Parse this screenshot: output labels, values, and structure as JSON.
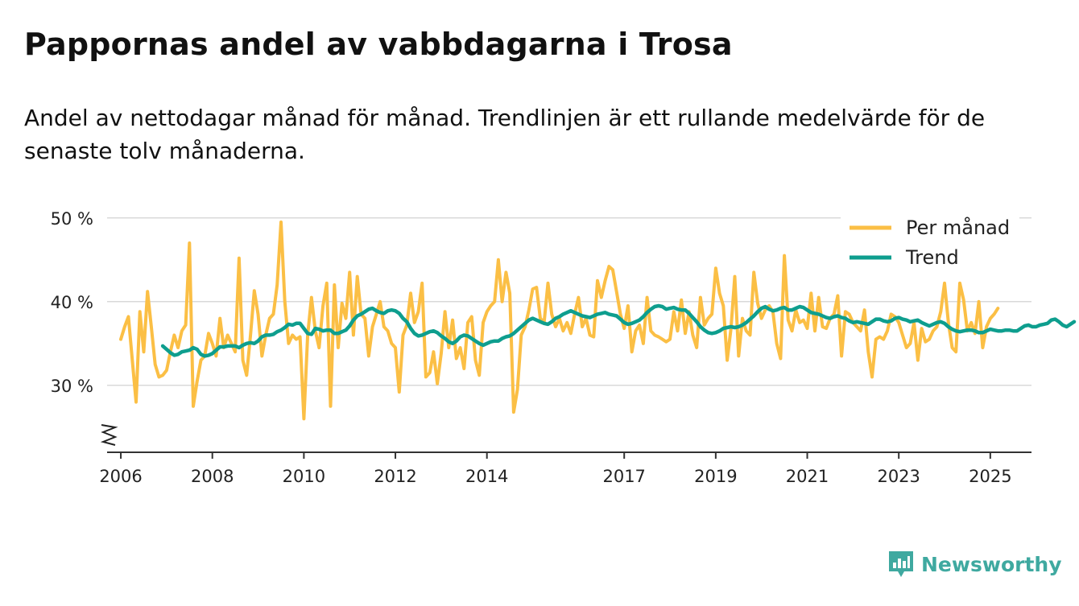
{
  "header": {
    "title": "Pappornas andel av vabbdagarna i Trosa",
    "subtitle": "Andel av nettodagar månad för månad. Trendlinjen är ett rullande medelvärde för de senaste tolv månaderna."
  },
  "brand": {
    "name": "Newsworthy"
  },
  "chart_data": {
    "type": "line",
    "title": "Pappornas andel av vabbdagarna i Trosa",
    "xlabel": "",
    "ylabel": "",
    "ylim": [
      22,
      52
    ],
    "y_ticks": [
      30,
      40,
      50
    ],
    "y_tick_labels": [
      "30 %",
      "40 %",
      "50 %"
    ],
    "x_ticks": [
      2006,
      2008,
      2010,
      2012,
      2014,
      2017,
      2019,
      2021,
      2023,
      2025
    ],
    "x_range": [
      2005.7,
      2025.9
    ],
    "axis_break": true,
    "legend_position": "top-right",
    "colors": {
      "monthly": "#fbbf45",
      "trend": "#0e9e8e",
      "grid": "#d9d9d9",
      "axis": "#333333"
    },
    "series": [
      {
        "name": "Per månad",
        "start": 2006.0,
        "step_months": 1,
        "values": [
          35.5,
          37.0,
          38.2,
          33.0,
          28.0,
          38.8,
          34.0,
          41.2,
          37.0,
          32.5,
          31.0,
          31.2,
          31.8,
          34.0,
          36.0,
          34.5,
          36.5,
          37.2,
          47.0,
          27.5,
          30.5,
          33.0,
          33.5,
          36.2,
          35.0,
          33.5,
          38.0,
          34.5,
          36.0,
          35.0,
          34.0,
          45.2,
          33.0,
          31.2,
          36.0,
          41.3,
          38.5,
          33.5,
          36.0,
          38.0,
          38.5,
          42.0,
          49.5,
          40.0,
          35.0,
          36.0,
          35.5,
          35.8,
          26.0,
          36.0,
          40.5,
          36.5,
          34.5,
          39.5,
          42.2,
          27.5,
          42.0,
          34.5,
          39.8,
          38.0,
          43.5,
          36.0,
          43.0,
          38.5,
          38.0,
          33.5,
          37.0,
          38.5,
          40.0,
          37.0,
          36.5,
          35.0,
          34.5,
          29.2,
          36.0,
          37.2,
          41.0,
          37.5,
          38.8,
          42.2,
          31.0,
          31.5,
          34.0,
          30.2,
          33.8,
          38.8,
          34.5,
          37.8,
          33.2,
          34.5,
          32.0,
          37.5,
          38.2,
          33.0,
          31.2,
          37.5,
          38.8,
          39.5,
          40.0,
          45.0,
          40.0,
          43.5,
          41.0,
          26.8,
          29.5,
          36.0,
          37.0,
          39.0,
          41.5,
          41.7,
          38.0,
          37.5,
          42.2,
          38.5,
          37.0,
          38.0,
          36.5,
          37.5,
          36.2,
          38.5,
          40.5,
          37.0,
          38.0,
          36.0,
          35.8,
          42.5,
          40.5,
          42.5,
          44.2,
          43.8,
          41.2,
          38.5,
          36.8,
          39.5,
          34.0,
          36.5,
          37.2,
          35.0,
          40.5,
          36.5,
          36.0,
          35.8,
          35.5,
          35.2,
          35.5,
          38.8,
          36.5,
          40.2,
          36.2,
          38.8,
          36.0,
          34.5,
          40.5,
          37.2,
          38.0,
          38.5,
          44.0,
          41.0,
          39.5,
          33.0,
          36.8,
          43.0,
          33.5,
          38.0,
          36.5,
          36.0,
          43.5,
          39.8,
          38.0,
          39.0,
          39.5,
          38.8,
          35.0,
          33.2,
          45.5,
          37.8,
          36.5,
          39.0,
          37.5,
          37.8,
          36.8,
          41.0,
          36.5,
          40.5,
          37.0,
          36.8,
          38.0,
          38.5,
          40.7,
          33.5,
          38.8,
          38.5,
          37.5,
          37.0,
          36.5,
          39.0,
          34.0,
          31.0,
          35.5,
          35.8,
          35.5,
          36.5,
          38.5,
          38.2,
          37.5,
          36.0,
          34.5,
          35.0,
          37.5,
          33.0,
          36.8,
          35.2,
          35.5,
          36.5,
          37.0,
          38.8,
          42.2,
          37.5,
          34.5,
          34.0,
          42.2,
          40.2,
          36.5,
          37.5,
          36.2,
          40.0,
          34.5,
          37.0,
          38.0,
          38.5,
          39.2
        ]
      },
      {
        "name": "Trend",
        "start": 2006.9167,
        "step_months": 1,
        "values": [
          34.7,
          34.3,
          33.9,
          33.6,
          33.7,
          34.0,
          34.1,
          34.2,
          34.5,
          34.3,
          33.7,
          33.5,
          33.6,
          33.8,
          34.2,
          34.6,
          34.6,
          34.7,
          34.7,
          34.7,
          34.5,
          34.8,
          35.0,
          35.1,
          35.0,
          35.3,
          35.8,
          36.0,
          36.0,
          36.1,
          36.4,
          36.6,
          36.9,
          37.3,
          37.2,
          37.4,
          37.4,
          36.8,
          36.2,
          36.1,
          36.8,
          36.7,
          36.5,
          36.6,
          36.6,
          36.2,
          36.2,
          36.4,
          36.6,
          37.1,
          37.8,
          38.3,
          38.5,
          38.8,
          39.1,
          39.2,
          38.9,
          38.7,
          38.6,
          38.9,
          39.0,
          38.9,
          38.6,
          38.0,
          37.6,
          36.8,
          36.2,
          35.9,
          36.0,
          36.2,
          36.4,
          36.5,
          36.3,
          35.9,
          35.6,
          35.2,
          35.0,
          35.3,
          35.8,
          36.0,
          35.9,
          35.6,
          35.3,
          35.0,
          34.8,
          35.0,
          35.2,
          35.3,
          35.3,
          35.6,
          35.8,
          35.9,
          36.2,
          36.6,
          37.0,
          37.4,
          37.8,
          38.0,
          37.8,
          37.6,
          37.4,
          37.3,
          37.6,
          38.0,
          38.2,
          38.5,
          38.7,
          38.9,
          38.7,
          38.5,
          38.3,
          38.2,
          38.1,
          38.3,
          38.5,
          38.6,
          38.7,
          38.5,
          38.4,
          38.3,
          37.9,
          37.5,
          37.3,
          37.4,
          37.6,
          37.8,
          38.2,
          38.7,
          39.1,
          39.4,
          39.5,
          39.4,
          39.1,
          39.2,
          39.3,
          39.1,
          39.0,
          39.0,
          38.6,
          38.1,
          37.6,
          37.0,
          36.6,
          36.3,
          36.2,
          36.3,
          36.5,
          36.8,
          36.9,
          37.0,
          36.9,
          37.0,
          37.2,
          37.5,
          37.9,
          38.3,
          38.8,
          39.2,
          39.4,
          39.1,
          38.9,
          39.0,
          39.2,
          39.3,
          39.0,
          39.0,
          39.2,
          39.4,
          39.3,
          39.0,
          38.7,
          38.6,
          38.5,
          38.3,
          38.1,
          38.0,
          38.2,
          38.3,
          38.1,
          38.0,
          37.7,
          37.5,
          37.6,
          37.5,
          37.4,
          37.3,
          37.6,
          37.9,
          37.9,
          37.7,
          37.6,
          37.7,
          38.0,
          38.1,
          37.9,
          37.8,
          37.6,
          37.7,
          37.8,
          37.5,
          37.3,
          37.1,
          37.3,
          37.5,
          37.6,
          37.4,
          37.0,
          36.7,
          36.5,
          36.4,
          36.5,
          36.6,
          36.6,
          36.5,
          36.3,
          36.3,
          36.5,
          36.7,
          36.6,
          36.5,
          36.5,
          36.6,
          36.6,
          36.5,
          36.5,
          36.8,
          37.1,
          37.2,
          37.0,
          37.0,
          37.2,
          37.3,
          37.4,
          37.8,
          37.9,
          37.6,
          37.2,
          37.0,
          37.3,
          37.6
        ]
      }
    ]
  }
}
